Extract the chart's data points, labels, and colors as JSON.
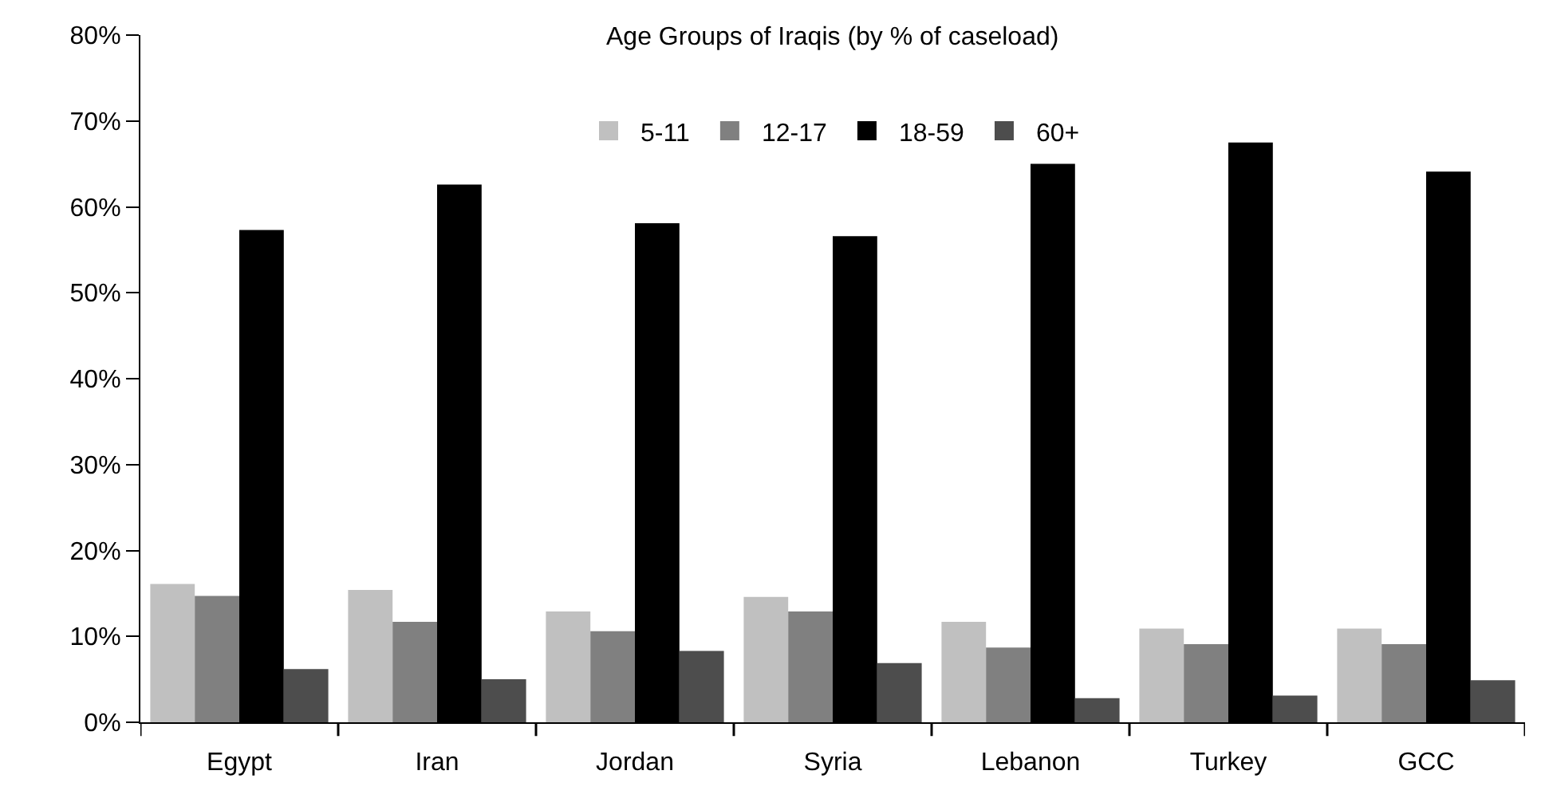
{
  "chart_data": {
    "type": "bar",
    "title": "Age Groups of Iraqis (by % of caseload)",
    "categories": [
      "Egypt",
      "Iran",
      "Jordan",
      "Syria",
      "Lebanon",
      "Turkey",
      "GCC"
    ],
    "series": [
      {
        "name": "5-11",
        "color": "#c0c0c0",
        "values": [
          16.1,
          15.4,
          12.9,
          14.6,
          11.7,
          10.9,
          10.9
        ]
      },
      {
        "name": "12-17",
        "color": "#808080",
        "values": [
          14.7,
          11.7,
          10.6,
          12.9,
          8.7,
          9.1,
          9.1
        ]
      },
      {
        "name": "18-59",
        "color": "#000000",
        "values": [
          57.3,
          62.6,
          58.1,
          56.6,
          65.0,
          67.5,
          64.1
        ]
      },
      {
        "name": "60+",
        "color": "#4d4d4d",
        "values": [
          6.2,
          5.0,
          8.3,
          6.9,
          2.8,
          3.1,
          4.9
        ]
      }
    ],
    "ylim": [
      0,
      80
    ],
    "yticks": [
      {
        "value": 0,
        "label": "0%"
      },
      {
        "value": 10,
        "label": "10%"
      },
      {
        "value": 20,
        "label": "20%"
      },
      {
        "value": 30,
        "label": "30%"
      },
      {
        "value": 40,
        "label": "40%"
      },
      {
        "value": 50,
        "label": "50%"
      },
      {
        "value": 60,
        "label": "60%"
      },
      {
        "value": 70,
        "label": "70%"
      },
      {
        "value": 80,
        "label": "80%"
      }
    ],
    "legend": "top"
  }
}
